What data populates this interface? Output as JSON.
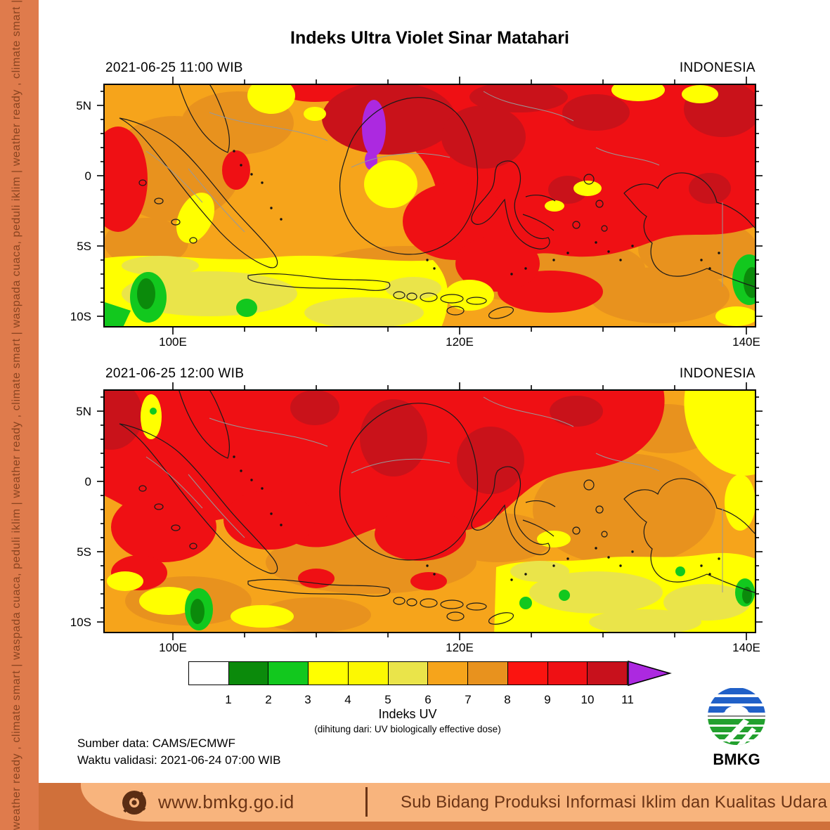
{
  "sidebar": {
    "tagline": "weather ready , climate smart   |   waspada cuaca, peduli iklim   |   weather ready , climate smart   |   waspada cuaca, peduli iklim   |   weather ready , climate smart   |   waspada cuaca, peduli iklim"
  },
  "title": "Indeks Ultra Violet Sinar Matahari",
  "maps": [
    {
      "timestamp": "2021-06-25  11:00 WIB",
      "region": "INDONESIA",
      "lat_labels": [
        "5N",
        "0",
        "5S",
        "10S"
      ],
      "lon_labels": [
        "100E",
        "120E",
        "140E"
      ]
    },
    {
      "timestamp": "2021-06-25  12:00 WIB",
      "region": "INDONESIA",
      "lat_labels": [
        "5N",
        "0",
        "5S",
        "10S"
      ],
      "lon_labels": [
        "100E",
        "120E",
        "140E"
      ]
    }
  ],
  "colorbar": {
    "tick_labels": [
      "1",
      "2",
      "3",
      "4",
      "5",
      "6",
      "7",
      "8",
      "9",
      "10",
      "11"
    ],
    "colors": [
      "#FFFFFF",
      "#0B8A0B",
      "#12C81E",
      "#FFFF00",
      "#FCF802",
      "#EAE44A",
      "#F6A41B",
      "#E8921E",
      "#FB1410",
      "#EF1014",
      "#C8111C"
    ],
    "arrow_color": "#AC29E0",
    "label": "Indeks UV",
    "sublabel": "(dihitung dari: UV biologically effective dose)"
  },
  "source": {
    "data_line": "Sumber data: CAMS/ECMWF",
    "validation_line": "Waktu validasi: 2021-06-24 07:00 WIB"
  },
  "logo": {
    "text": "BMKG"
  },
  "footer": {
    "website": "www.bmkg.go.id",
    "department": "Sub Bidang Produksi Informasi Iklim dan Kualitas Udara"
  }
}
